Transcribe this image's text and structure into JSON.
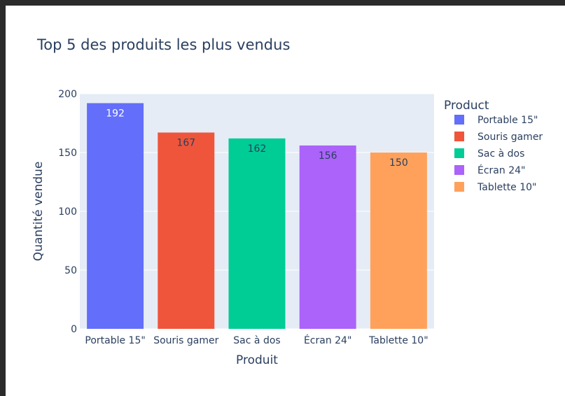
{
  "chart_data": {
    "type": "bar",
    "title": "Top 5 des produits les plus vendus",
    "xlabel": "Produit",
    "ylabel": "Quantité vendue",
    "ylim": [
      0,
      200
    ],
    "yticks": [
      0,
      50,
      100,
      150,
      200
    ],
    "grid": true,
    "legend_title": "Product",
    "legend_position": "right",
    "categories": [
      "Portable 15\"",
      "Souris gamer",
      "Sac à dos",
      "Écran 24\"",
      "Tablette 10\""
    ],
    "values": [
      192,
      167,
      162,
      156,
      150
    ],
    "colors": [
      "#636efa",
      "#ef553b",
      "#00cc96",
      "#ab63fa",
      "#ffa15a"
    ],
    "label_colors": [
      "#ffffff",
      "#2a3f5f",
      "#2a3f5f",
      "#2a3f5f",
      "#2a3f5f"
    ]
  }
}
